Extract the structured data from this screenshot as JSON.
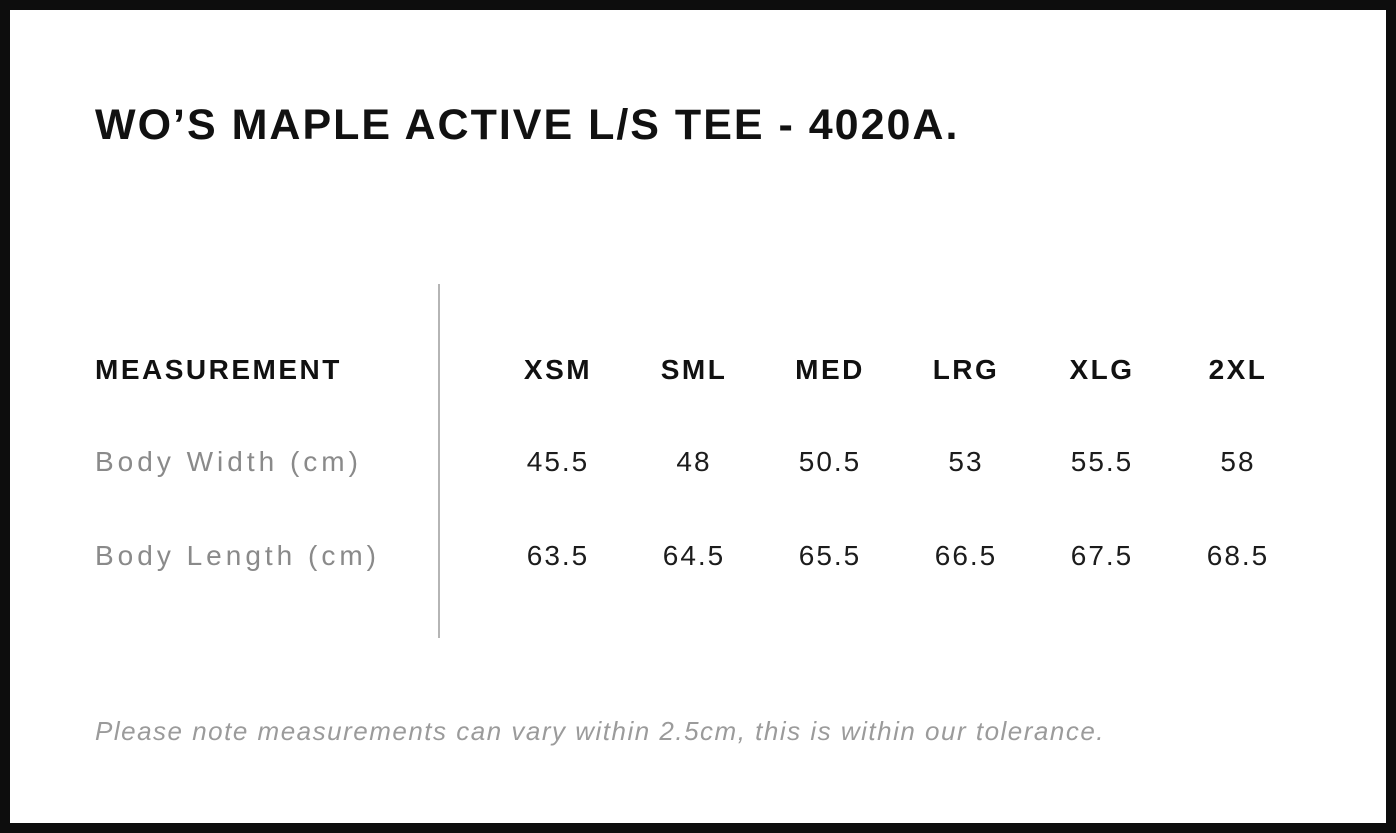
{
  "page": {
    "title": "WO’S MAPLE ACTIVE L/S TEE - 4020A."
  },
  "table": {
    "measurement_header": "MEASUREMENT",
    "size_headers": [
      "XSM",
      "SML",
      "MED",
      "LRG",
      "XLG",
      "2XL"
    ],
    "rows": [
      {
        "label": "Body Width (cm)",
        "values": [
          "45.5",
          "48",
          "50.5",
          "53",
          "55.5",
          "58"
        ]
      },
      {
        "label": "Body Length (cm)",
        "values": [
          "63.5",
          "64.5",
          "65.5",
          "66.5",
          "67.5",
          "68.5"
        ]
      }
    ]
  },
  "footnote": "Please note measurements can vary within 2.5cm, this is within our tolerance.",
  "colors": {
    "text": "#111111",
    "muted_label": "#8a8a8a",
    "footnote": "#9b9b9b",
    "divider": "#b5b5b5",
    "border": "#0d0d0d",
    "background": "#ffffff"
  },
  "chart_data": {
    "type": "table",
    "title": "WO’S MAPLE ACTIVE L/S TEE - 4020A.",
    "columns": [
      "MEASUREMENT",
      "XSM",
      "SML",
      "MED",
      "LRG",
      "XLG",
      "2XL"
    ],
    "rows": [
      [
        "Body Width (cm)",
        45.5,
        48,
        50.5,
        53,
        55.5,
        58
      ],
      [
        "Body Length (cm)",
        63.5,
        64.5,
        65.5,
        66.5,
        67.5,
        68.5
      ]
    ],
    "note": "Please note measurements can vary within 2.5cm, this is within our tolerance."
  }
}
